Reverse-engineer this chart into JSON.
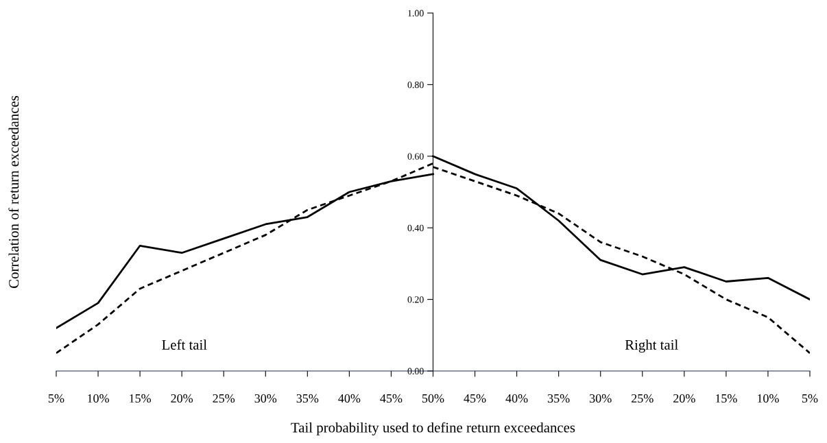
{
  "chart_data": {
    "type": "line",
    "xlabel": "Tail probability used to define return exceedances",
    "ylabel": "Correlation of return exceedances",
    "categories": [
      "5%",
      "10%",
      "15%",
      "20%",
      "25%",
      "30%",
      "35%",
      "40%",
      "45%",
      "50%",
      "45%",
      "40%",
      "35%",
      "30%",
      "25%",
      "20%",
      "15%",
      "10%",
      "5%"
    ],
    "series": [
      {
        "color": "#000000",
        "line_style": "solid",
        "values": [
          0.12,
          0.19,
          0.35,
          0.33,
          0.37,
          0.41,
          0.43,
          0.5,
          0.53,
          0.55,
          null,
          null,
          null,
          null,
          null,
          null,
          null,
          null,
          null
        ]
      },
      {
        "color": "#000000",
        "line_style": "dashed",
        "values": [
          0.05,
          0.13,
          0.23,
          0.28,
          0.33,
          0.38,
          0.45,
          0.49,
          0.53,
          0.58,
          null,
          null,
          null,
          null,
          null,
          null,
          null,
          null,
          null
        ]
      },
      {
        "color": "#000000",
        "line_style": "solid",
        "values": [
          null,
          null,
          null,
          null,
          null,
          null,
          null,
          null,
          null,
          0.6,
          0.55,
          0.51,
          0.42,
          0.31,
          0.27,
          0.29,
          0.25,
          0.26,
          0.2
        ]
      },
      {
        "color": "#000000",
        "line_style": "dashed",
        "values": [
          null,
          null,
          null,
          null,
          null,
          null,
          null,
          null,
          null,
          0.57,
          0.53,
          0.49,
          0.44,
          0.36,
          0.32,
          0.27,
          0.2,
          0.15,
          0.05
        ]
      }
    ],
    "ylim": [
      0,
      1
    ],
    "yticks": [
      {
        "value": 0,
        "label": "0.00"
      },
      {
        "value": 0.2,
        "label": "0.20"
      },
      {
        "value": 0.4,
        "label": "0.40"
      },
      {
        "value": 0.6,
        "label": "0.60"
      },
      {
        "value": 0.8,
        "label": "0.80"
      },
      {
        "value": 1,
        "label": "1.00"
      }
    ],
    "annotations": [
      "Left tail",
      "Right tail"
    ],
    "marker": "none",
    "grid": false,
    "legend": false
  }
}
